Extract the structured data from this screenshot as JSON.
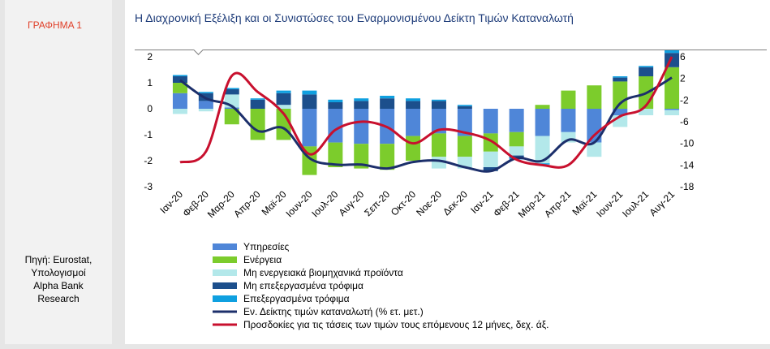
{
  "figure_label": "ΓΡΑΦΗΜΑ 1",
  "source_lines": [
    "Πηγή: Eurostat,",
    "Υπολογισμοί",
    "Alpha Bank",
    "Research"
  ],
  "chart_data": {
    "type": "bar",
    "title": "Η Διαχρονική Εξέλιξη και οι Συνιστώσες του Εναρμονισμένου Δείκτη Τιμών Καταναλωτή",
    "categories": [
      "Ιαν-20",
      "Φεβ-20",
      "Μαρ-20",
      "Απρ-20",
      "Μαϊ-20",
      "Ιουν-20",
      "Ιουλ-20",
      "Αυγ-20",
      "Σεπ-20",
      "Οκτ-20",
      "Νοε-20",
      "Δεκ-20",
      "Ιαν-21",
      "Φεβ-21",
      "Μαρ-21",
      "Απρ-21",
      "Μαϊ-21",
      "Ιουν-21",
      "Ιουλ-21",
      "Αυγ-21"
    ],
    "left_axis": {
      "ylim": [
        -3,
        2
      ],
      "ticks": [
        2,
        1,
        0,
        -1,
        -2,
        -3
      ]
    },
    "right_axis": {
      "ylim": [
        -18,
        6
      ],
      "ticks": [
        6,
        2,
        -2,
        -6,
        -10,
        -14,
        -18
      ]
    },
    "grid": false,
    "legend_position": "bottom",
    "series": [
      {
        "name": "Υπηρεσίες",
        "axis": "left",
        "kind": "bar",
        "color": "#4f86d8",
        "values": [
          0.6,
          0.3,
          0.05,
          0,
          0,
          -1.45,
          -1.3,
          -1.35,
          -1.35,
          -1.05,
          -0.95,
          -1.05,
          -0.95,
          -0.9,
          -1.05,
          -0.9,
          -1.3,
          -0.25,
          0,
          -0.05
        ]
      },
      {
        "name": "Ενέργεια",
        "axis": "left",
        "kind": "bar",
        "color": "#7ccc2c",
        "values": [
          0.4,
          0.0,
          -0.6,
          -1.2,
          -1.2,
          -1.1,
          -0.95,
          -0.95,
          -1.0,
          -0.95,
          -0.9,
          -0.8,
          -0.7,
          -0.55,
          0.15,
          0.7,
          0.9,
          1.05,
          1.25,
          1.6
        ]
      },
      {
        "name": "Μη ενεργειακά βιομηχανικά προϊόντα",
        "axis": "left",
        "kind": "bar",
        "color": "#b3e8ea",
        "values": [
          -0.2,
          -0.1,
          0.5,
          0,
          0.15,
          0,
          0,
          0,
          0,
          0,
          -0.45,
          -0.45,
          -0.6,
          -0.35,
          -1.05,
          -0.4,
          -0.55,
          -0.45,
          -0.25,
          -0.2
        ]
      },
      {
        "name": "Μη επεξεργασμένα τρόφιμα",
        "axis": "left",
        "kind": "bar",
        "color": "#1c4f8c",
        "values": [
          0.25,
          0.3,
          0.2,
          0.35,
          0.45,
          0.55,
          0.25,
          0.3,
          0.4,
          0.3,
          0.3,
          0.1,
          -0.15,
          -0.1,
          0,
          0,
          0,
          0.15,
          0.35,
          0.55
        ]
      },
      {
        "name": "Επεξεργασμένα τρόφιμα",
        "axis": "left",
        "kind": "bar",
        "color": "#0fa0e0",
        "values": [
          0.05,
          0.05,
          0.05,
          0.05,
          0.1,
          0.15,
          0.1,
          0.1,
          0.1,
          0.1,
          0.05,
          0.05,
          0,
          -0.05,
          -0.05,
          0,
          0,
          0.05,
          0.05,
          0.1
        ]
      },
      {
        "name": "Εν. Δείκτης τιμών καταναλωτή (% ετ. μετ.)",
        "axis": "left",
        "kind": "line",
        "color": "#1c2f6b",
        "values": [
          1.1,
          0.4,
          0.1,
          -0.85,
          -0.75,
          -1.9,
          -2.15,
          -2.15,
          -2.3,
          -2.05,
          -2.0,
          -2.25,
          -2.4,
          -1.9,
          -2.0,
          -1.2,
          -1.3,
          0.2,
          0.6,
          1.2
        ]
      },
      {
        "name": "Προσδοκίες για τις τάσεις των τιμών τους επόμενους 12 μήνες, δεχ. άξ.",
        "axis": "right",
        "kind": "line",
        "color": "#c8102e",
        "values": [
          -13.5,
          -11.5,
          2.5,
          -0.5,
          -4.5,
          -12,
          -7.5,
          -6,
          -7,
          -10,
          -7.5,
          -8,
          -9.5,
          -13,
          -14,
          -14,
          -8.5,
          -5,
          -3,
          6
        ]
      }
    ]
  }
}
